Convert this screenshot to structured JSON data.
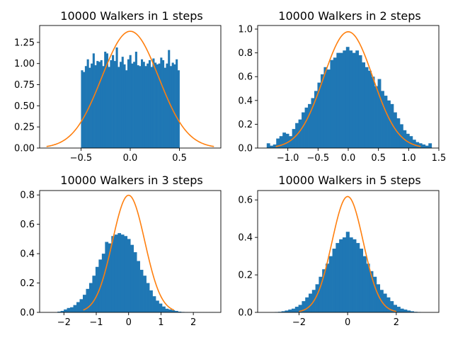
{
  "chart_data": [
    {
      "type": "bar",
      "title": "10000 Walkers in 1 steps",
      "xlim": [
        -0.92,
        0.92
      ],
      "ylim": [
        0,
        1.45
      ],
      "xticks": [
        -0.5,
        0.0,
        0.5
      ],
      "xtick_labels": [
        "−0.5",
        "0.0",
        "0.5"
      ],
      "yticks": [
        0,
        0.25,
        0.5,
        0.75,
        1.0,
        1.25
      ],
      "ytick_labels": [
        "0.00",
        "0.25",
        "0.50",
        "0.75",
        "1.00",
        "1.25"
      ],
      "hist_range": [
        -0.5,
        0.5
      ],
      "bar_values": [
        0.92,
        0.9,
        0.97,
        1.05,
        0.95,
        1.0,
        1.12,
        0.98,
        1.03,
        1.02,
        1.04,
        0.97,
        1.14,
        1.12,
        0.96,
        1.04,
        1.1,
        1.03,
        1.19,
        0.96,
        1.02,
        1.08,
        0.99,
        0.92,
        1.05,
        1.1,
        1.0,
        1.02,
        1.14,
        0.98,
        0.97,
        1.05,
        1.02,
        0.97,
        1.0,
        1.04,
        0.96,
        1.06,
        1.01,
        0.99,
        1.0,
        1.07,
        1.04,
        0.95,
        1.0,
        1.16,
        0.97,
        1.01,
        0.99,
        1.05,
        0.92
      ],
      "curve": {
        "sigma": 0.2887,
        "x_range": [
          -0.85,
          0.85
        ]
      }
    },
    {
      "type": "bar",
      "title": "10000 Walkers in 2 steps",
      "xlim": [
        -1.5,
        1.5
      ],
      "ylim": [
        0,
        1.03
      ],
      "xticks": [
        -1.0,
        -0.5,
        0.0,
        0.5,
        1.0,
        1.5
      ],
      "xtick_labels": [
        "−1.0",
        "−0.5",
        "0.0",
        "0.5",
        "1.0",
        "1.5"
      ],
      "yticks": [
        0,
        0.2,
        0.4,
        0.6,
        0.8,
        1.0
      ],
      "ytick_labels": [
        "0.0",
        "0.2",
        "0.4",
        "0.6",
        "0.8",
        "1.0"
      ],
      "hist_range": [
        -1.35,
        1.38
      ],
      "bar_values": [
        0.04,
        0.02,
        0.03,
        0.08,
        0.1,
        0.13,
        0.12,
        0.1,
        0.16,
        0.21,
        0.24,
        0.3,
        0.34,
        0.37,
        0.42,
        0.48,
        0.55,
        0.62,
        0.68,
        0.66,
        0.74,
        0.76,
        0.8,
        0.8,
        0.82,
        0.85,
        0.82,
        0.8,
        0.82,
        0.78,
        0.72,
        0.68,
        0.65,
        0.6,
        0.52,
        0.58,
        0.48,
        0.44,
        0.4,
        0.37,
        0.3,
        0.25,
        0.2,
        0.15,
        0.12,
        0.1,
        0.07,
        0.05,
        0.04,
        0.03,
        0.02,
        0.04
      ],
      "curve": {
        "sigma": 0.4082,
        "x_range": [
          -1.2,
          1.2
        ]
      }
    },
    {
      "type": "bar",
      "title": "10000 Walkers in 3 steps",
      "xlim": [
        -2.75,
        2.85
      ],
      "ylim": [
        0,
        0.83
      ],
      "xticks": [
        -2,
        -1,
        0,
        1,
        2
      ],
      "xtick_labels": [
        "−2",
        "−1",
        "0",
        "1",
        "2"
      ],
      "yticks": [
        0,
        0.2,
        0.4,
        0.6,
        0.8
      ],
      "ytick_labels": [
        "0.0",
        "0.2",
        "0.4",
        "0.6",
        "0.8"
      ],
      "hist_range": [
        -2.2,
        2.7
      ],
      "bar_values": [
        0.005,
        0.01,
        0.02,
        0.03,
        0.035,
        0.05,
        0.07,
        0.09,
        0.12,
        0.16,
        0.2,
        0.25,
        0.31,
        0.36,
        0.4,
        0.48,
        0.47,
        0.52,
        0.53,
        0.54,
        0.53,
        0.52,
        0.5,
        0.46,
        0.41,
        0.35,
        0.29,
        0.25,
        0.2,
        0.15,
        0.11,
        0.08,
        0.06,
        0.04,
        0.025,
        0.02,
        0.015,
        0.01,
        0.005,
        0.003,
        0.002,
        0.001,
        0.001,
        0.001,
        0.001,
        0.001,
        0.001,
        0.001,
        0.001,
        0.001
      ],
      "curve": {
        "sigma": 0.5,
        "x_range": [
          -1.4,
          1.4
        ]
      }
    },
    {
      "type": "bar",
      "title": "10000 Walkers in 5 steps",
      "xlim": [
        -3.7,
        3.75
      ],
      "ylim": [
        0,
        0.65
      ],
      "xticks": [
        -2,
        0,
        2
      ],
      "xtick_labels": [
        "−2",
        "0",
        "2"
      ],
      "yticks": [
        0,
        0.2,
        0.4,
        0.6
      ],
      "ytick_labels": [
        "0.0",
        "0.2",
        "0.4",
        "0.6"
      ],
      "hist_range": [
        -3.0,
        3.0
      ],
      "bar_values": [
        0.002,
        0.003,
        0.006,
        0.01,
        0.015,
        0.02,
        0.03,
        0.04,
        0.06,
        0.08,
        0.1,
        0.12,
        0.15,
        0.19,
        0.23,
        0.26,
        0.3,
        0.34,
        0.37,
        0.39,
        0.4,
        0.43,
        0.4,
        0.39,
        0.37,
        0.34,
        0.3,
        0.26,
        0.22,
        0.19,
        0.15,
        0.12,
        0.1,
        0.08,
        0.06,
        0.04,
        0.03,
        0.02,
        0.015,
        0.01,
        0.006,
        0.003,
        0.002
      ],
      "curve": {
        "sigma": 0.6455,
        "x_range": [
          -2.0,
          2.0
        ]
      }
    }
  ],
  "colors": {
    "bars": "#1f77b4",
    "curve": "#ff7f0e",
    "axis": "#000000"
  }
}
